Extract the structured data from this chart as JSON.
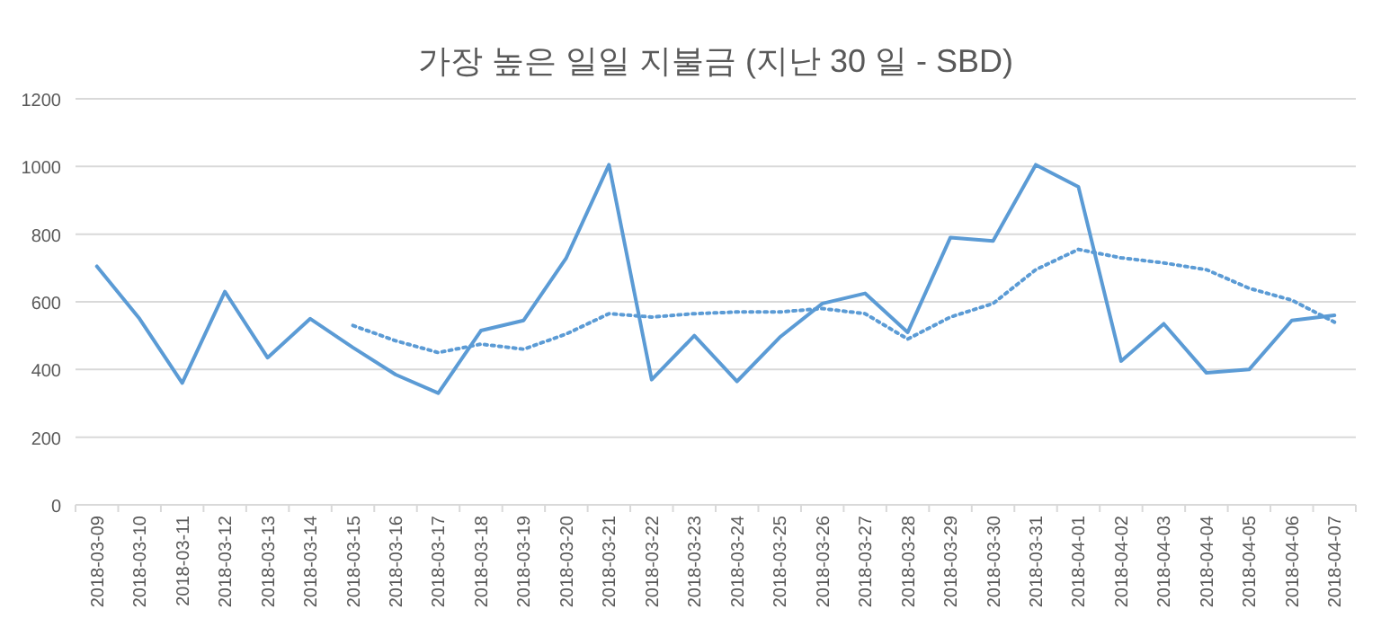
{
  "chart_data": {
    "type": "line",
    "title": "가장 높은 일일 지불금 (지난 30 일 - SBD)",
    "categories": [
      "2018-03-09",
      "2018-03-10",
      "2018-03-11",
      "2018-03-12",
      "2018-03-13",
      "2018-03-14",
      "2018-03-15",
      "2018-03-16",
      "2018-03-17",
      "2018-03-18",
      "2018-03-19",
      "2018-03-20",
      "2018-03-21",
      "2018-03-22",
      "2018-03-23",
      "2018-03-24",
      "2018-03-25",
      "2018-03-26",
      "2018-03-27",
      "2018-03-28",
      "2018-03-29",
      "2018-03-30",
      "2018-03-31",
      "2018-04-01",
      "2018-04-02",
      "2018-04-03",
      "2018-04-04",
      "2018-04-05",
      "2018-04-06",
      "2018-04-07"
    ],
    "series": [
      {
        "color": "#5b9bd5",
        "line_style": "solid",
        "values": [
          705,
          550,
          360,
          630,
          435,
          550,
          465,
          385,
          330,
          515,
          545,
          730,
          1005,
          370,
          500,
          365,
          495,
          595,
          625,
          510,
          790,
          780,
          1005,
          940,
          425,
          535,
          390,
          400,
          545,
          560
        ]
      },
      {
        "color": "#5b9bd5",
        "line_style": "dotted",
        "values": [
          null,
          null,
          null,
          null,
          null,
          null,
          530,
          485,
          450,
          475,
          460,
          505,
          565,
          555,
          565,
          570,
          570,
          580,
          565,
          490,
          555,
          595,
          695,
          755,
          730,
          715,
          695,
          640,
          605,
          540
        ]
      }
    ],
    "ylim": [
      0,
      1200
    ],
    "yticks": [
      0,
      200,
      400,
      600,
      800,
      1000,
      1200
    ],
    "grid": "y",
    "marker": "none"
  }
}
